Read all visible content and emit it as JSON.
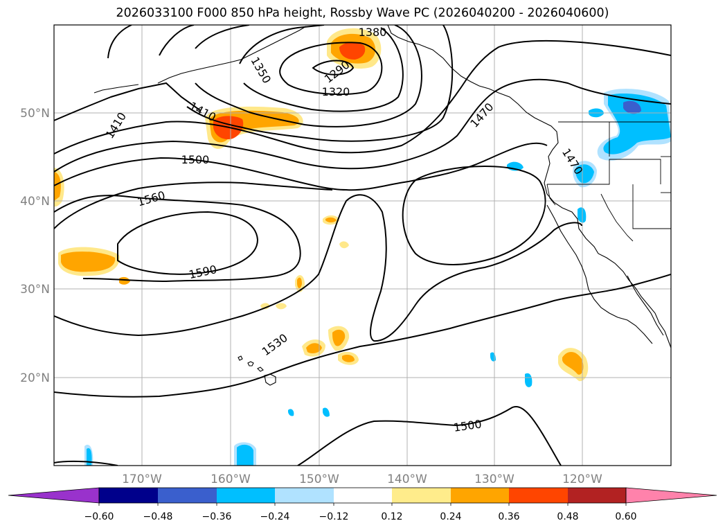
{
  "title": "2026033100 F000 850 hPa height, Rossby Wave PC (2026040200 - 2026040600)",
  "map": {
    "lat_ticks": [
      "50°N",
      "40°N",
      "30°N",
      "20°N"
    ],
    "lon_ticks": [
      "170°W",
      "160°W",
      "150°W",
      "140°W",
      "130°W",
      "120°W"
    ],
    "contour_labels": [
      "1380",
      "1350",
      "1290",
      "1320",
      "1410",
      "1410",
      "1470",
      "1470",
      "1500",
      "1560",
      "1590",
      "1530",
      "1500"
    ],
    "contour_values_m": [
      1290,
      1320,
      1350,
      1380,
      1410,
      1440,
      1470,
      1500,
      1530,
      1560,
      1590
    ],
    "colors": {
      "coastline": "#000000",
      "gridlines": "#b0b0b0",
      "height_contours": "#000000"
    }
  },
  "colorbar": {
    "tick_labels": [
      "−0.60",
      "−0.48",
      "−0.36",
      "−0.24",
      "−0.12",
      "0.12",
      "0.24",
      "0.36",
      "0.48",
      "0.60"
    ],
    "levels": [
      -0.6,
      -0.48,
      -0.36,
      -0.24,
      -0.12,
      0.12,
      0.24,
      0.36,
      0.48,
      0.6
    ],
    "colors": [
      "#9932cc",
      "#00008b",
      "#3a5fcd",
      "#00bfff",
      "#b0e2ff",
      "#ffffff",
      "#ffec8b",
      "#ffa500",
      "#ff4500",
      "#b22222",
      "#ff82ab"
    ]
  }
}
